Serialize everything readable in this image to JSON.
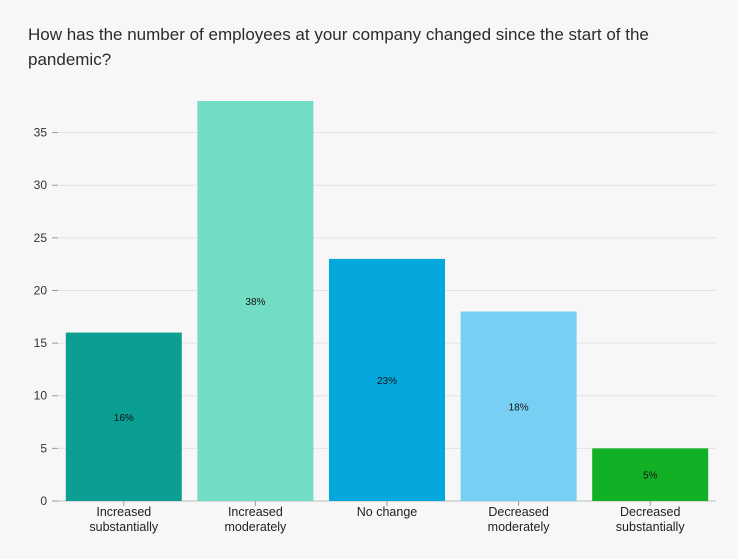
{
  "chart_data": {
    "type": "bar",
    "title": "How has the number of employees at your company changed since the start of the pandemic?",
    "xlabel": "",
    "ylabel": "",
    "categories": [
      [
        "Increased",
        "substantially"
      ],
      [
        "Increased",
        "moderately"
      ],
      [
        "No change"
      ],
      [
        "Decreased",
        "moderately"
      ],
      [
        "Decreased",
        "substantially"
      ]
    ],
    "values": [
      16,
      38,
      23,
      18,
      5
    ],
    "data_labels": [
      "16%",
      "38%",
      "23%",
      "18%",
      "5%"
    ],
    "colors": [
      "#0b9e93",
      "#72ddc4",
      "#04a8dc",
      "#78cff3",
      "#12b025"
    ],
    "ylim": [
      0,
      38
    ],
    "yticks": [
      0,
      5,
      10,
      15,
      20,
      25,
      30,
      35
    ],
    "grid": true,
    "legend": "none"
  }
}
